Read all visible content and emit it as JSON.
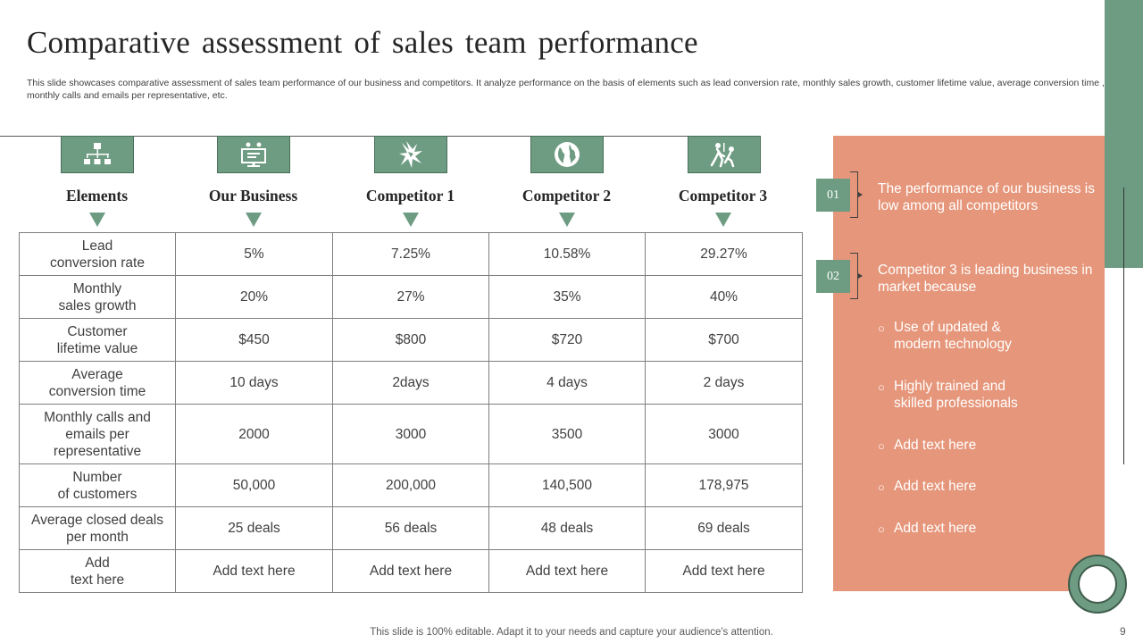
{
  "slide": {
    "title": "Comparative assessment of sales team performance",
    "subtitle": "This slide showcases comparative assessment of sales team performance of our business and competitors. It analyze performance on the basis of elements such as lead conversion rate, monthly sales growth, customer lifetime value, average conversion time , monthly calls and emails per representative, etc.",
    "footer": "This slide is 100% editable. Adapt it to your needs and capture your audience's attention.",
    "page_number": "9"
  },
  "columns": [
    {
      "label": "Elements",
      "icon": "org-chart-icon"
    },
    {
      "label": "Our Business",
      "icon": "business-presentation-icon"
    },
    {
      "label": "Competitor 1",
      "icon": "collision-icon"
    },
    {
      "label": "Competitor 2",
      "icon": "globe-icon"
    },
    {
      "label": "Competitor 3",
      "icon": "competition-race-icon"
    }
  ],
  "rows": [
    {
      "element": "Lead\nconversion rate",
      "values": [
        "5%",
        "7.25%",
        "10.58%",
        "29.27%"
      ]
    },
    {
      "element": "Monthly\nsales growth",
      "values": [
        "20%",
        "27%",
        "35%",
        "40%"
      ]
    },
    {
      "element": "Customer\nlifetime value",
      "values": [
        "$450",
        "$800",
        "$720",
        "$700"
      ]
    },
    {
      "element": "Average\nconversion time",
      "values": [
        "10 days",
        "2days",
        "4 days",
        "2 days"
      ]
    },
    {
      "element": "Monthly calls and\nemails per\nrepresentative",
      "values": [
        "2000",
        "3000",
        "3500",
        "3000"
      ]
    },
    {
      "element": "Number\nof customers",
      "values": [
        "50,000",
        "200,000",
        "140,500",
        "178,975"
      ]
    },
    {
      "element": "Average closed deals\nper month",
      "values": [
        "25 deals",
        "56 deals",
        "48 deals",
        "69 deals"
      ]
    },
    {
      "element": "Add\ntext here",
      "values": [
        "Add text here",
        "Add text here",
        "Add text here",
        "Add text here"
      ]
    }
  ],
  "insights": [
    {
      "number": "01",
      "text": "The performance of our business is low among all competitors"
    },
    {
      "number": "02",
      "text": "Competitor 3 is leading business in market because"
    }
  ],
  "bullets": [
    "Use of updated &\nmodern technology",
    "Highly trained and\nskilled professionals",
    "Add text here",
    "Add text here",
    "Add text here"
  ],
  "colors": {
    "accent_green": "#6e9c82",
    "panel_coral": "#e6967a"
  }
}
